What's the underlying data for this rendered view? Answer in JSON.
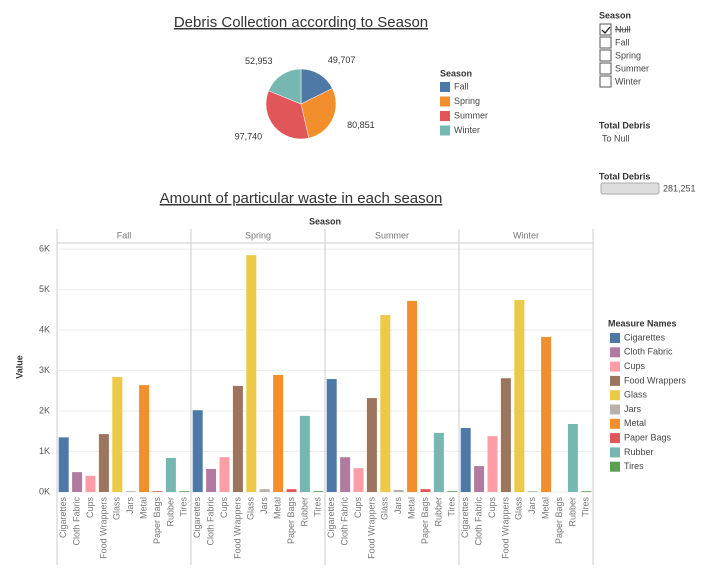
{
  "chart_data": [
    {
      "type": "pie",
      "title": "Debris Collection according to Season",
      "legend_title": "Season",
      "categories": [
        "Fall",
        "Spring",
        "Summer",
        "Winter"
      ],
      "values": [
        49707,
        80851,
        97740,
        52953
      ],
      "value_labels": [
        "49,707",
        "80,851",
        "97,740",
        "52,953"
      ],
      "colors": [
        "#4e79a7",
        "#f28e2b",
        "#e15759",
        "#76b7b2"
      ]
    },
    {
      "type": "bar",
      "title": "Amount of particular waste in each season",
      "facet_title": "Season",
      "y_label": "Value",
      "legend_title": "Measure Names",
      "categories": [
        "Cigarettes",
        "Cloth Fabric",
        "Cups",
        "Food Wrappers",
        "Glass",
        "Jars",
        "Metal",
        "Paper Bags",
        "Rubber",
        "Tires"
      ],
      "colors": [
        "#4e79a7",
        "#b07aa1",
        "#ff9da7",
        "#9c755f",
        "#edc948",
        "#bab0ac",
        "#f28e2b",
        "#e15759",
        "#76b7b2",
        "#59a14f"
      ],
      "facets": [
        {
          "name": "Fall",
          "values": [
            1350,
            490,
            400,
            1430,
            2840,
            20,
            2640,
            20,
            840,
            20
          ]
        },
        {
          "name": "Spring",
          "values": [
            2020,
            570,
            860,
            2620,
            5850,
            70,
            2890,
            70,
            1880,
            20
          ]
        },
        {
          "name": "Summer",
          "values": [
            2790,
            860,
            590,
            2320,
            4370,
            50,
            4720,
            70,
            1460,
            20
          ]
        },
        {
          "name": "Winter",
          "values": [
            1580,
            640,
            1380,
            2810,
            4740,
            20,
            3830,
            0,
            1680,
            20
          ]
        }
      ],
      "ylim": [
        0,
        6150
      ],
      "yticks": [
        {
          "value": 0,
          "label": "0K"
        },
        {
          "value": 1000,
          "label": "1K"
        },
        {
          "value": 2000,
          "label": "2K"
        },
        {
          "value": 3000,
          "label": "3K"
        },
        {
          "value": 4000,
          "label": "4K"
        },
        {
          "value": 5000,
          "label": "5K"
        },
        {
          "value": 6000,
          "label": "6K"
        }
      ],
      "grid": true
    }
  ],
  "filter": {
    "title": "Season",
    "items": [
      "Null",
      "Fall",
      "Spring",
      "Summer",
      "Winter"
    ],
    "checked": [
      true,
      false,
      false,
      false,
      false
    ]
  },
  "total_debris": {
    "title": "Total Debris",
    "value": "To Null"
  },
  "total_debris_range": {
    "title": "Total Debris",
    "value": "281,251"
  }
}
